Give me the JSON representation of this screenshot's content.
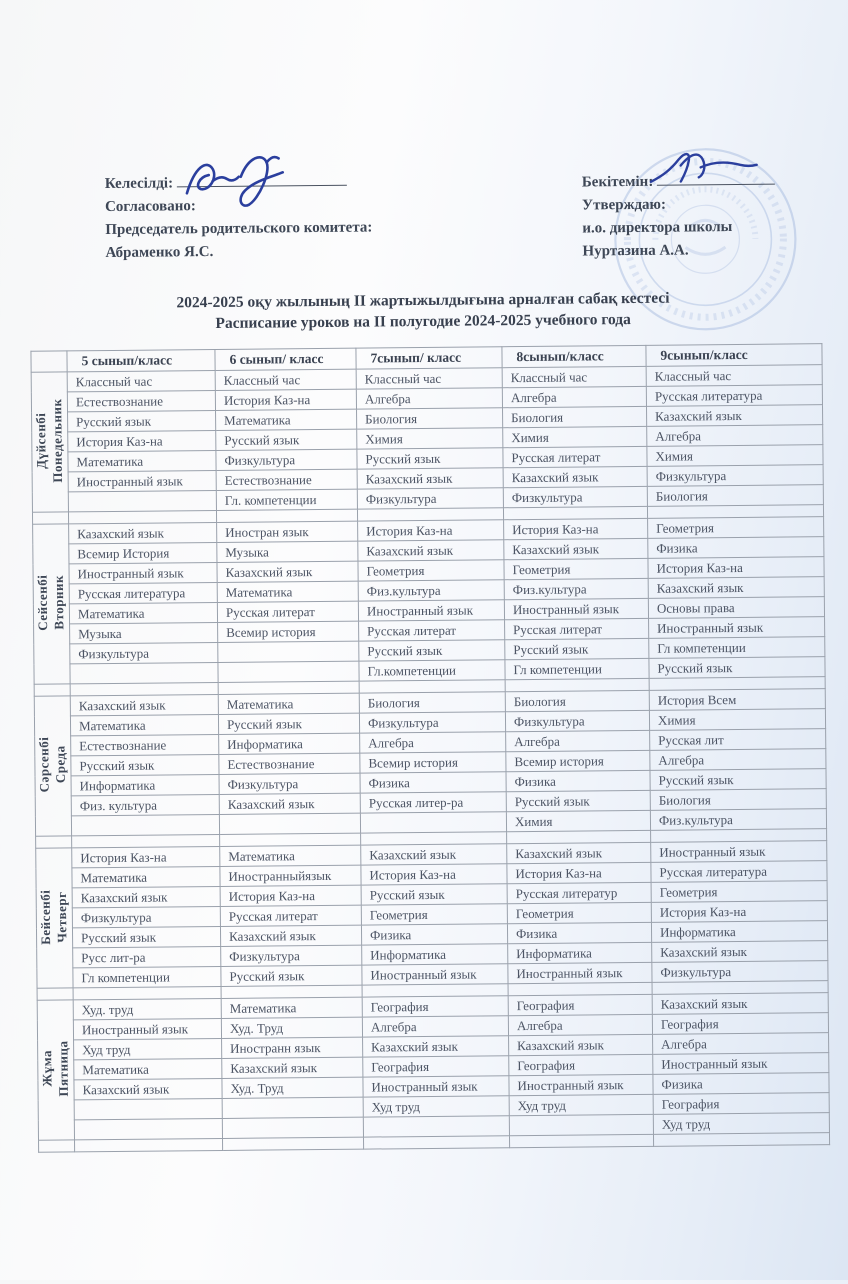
{
  "approval": {
    "left": {
      "agreed_kk": "Келесілді:",
      "agreed_ru": "Согласовано:",
      "role": "Председатель родительского комитета:",
      "name": "Абраменко Я.С."
    },
    "right": {
      "approved_kk": "Бекітемін:",
      "approved_ru": "Утверждаю:",
      "role": "и.о. директора школы",
      "name": "Нуртазина А.А."
    }
  },
  "title": {
    "line1_kk": "2024-2025 оқу жылының ІІ жартыжылдығына арналған сабақ кестесі",
    "line2_ru": "Расписание уроков на ІІ полугодие  2024-2025 учебного года"
  },
  "table": {
    "columns": [
      "",
      "5 сынып/класс",
      "6 сынып/ класс",
      "7сынып/ класс",
      "8сынып/класс",
      "9сынып/класс"
    ],
    "days": [
      {
        "kk": "Дүйсенбі",
        "ru": "Понедельник",
        "rows": [
          [
            "Классный час",
            "Классный час",
            "Классный час",
            "Классный час",
            "Классный час"
          ],
          [
            "Естествознание",
            "История Каз-на",
            "Алгебра",
            "Алгебра",
            "Русская литература"
          ],
          [
            "Русский язык",
            "Математика",
            "Биология",
            "Биология",
            "Казахский язык"
          ],
          [
            "История Каз-на",
            "Русский язык",
            "Химия",
            "Химия",
            "Алгебра"
          ],
          [
            "Математика",
            "Физкультура",
            "Русский язык",
            "Русская литерат",
            "Химия"
          ],
          [
            "Иностранный язык",
            "Естествознание",
            "Казахский язык",
            "Казахский язык",
            "Физкультура"
          ],
          [
            "",
            "Гл. компетенции",
            "Физкультура",
            "Физкультура",
            "Биология"
          ]
        ]
      },
      {
        "kk": "Сейсенбі",
        "ru": "Вторник",
        "rows": [
          [
            "Казахский язык",
            "Иностран  язык",
            "История Каз-на",
            "История Каз-на",
            "Геометрия"
          ],
          [
            "Всемир История",
            "Музыка",
            "Казахский язык",
            "Казахский язык",
            "Физика"
          ],
          [
            "Иностранный  язык",
            "Казахский язык",
            "Геометрия",
            "Геометрия",
            "История Каз-на"
          ],
          [
            "Русская литература",
            "Математика",
            "Физ.культура",
            "Физ.культура",
            "Казахский  язык"
          ],
          [
            "Математика",
            "Русская литерат",
            "Иностранный язык",
            "Иностранный язык",
            "Основы права"
          ],
          [
            "Музыка",
            "Всемир история",
            "Русская литерат",
            "Русская литерат",
            "Иностранный язык"
          ],
          [
            "Физкультура",
            "",
            "Русский язык",
            "Русский язык",
            "Гл компетенции"
          ],
          [
            "",
            "",
            "Гл.компетенции",
            "Гл компетенции",
            "Русский язык"
          ]
        ]
      },
      {
        "kk": "Сәрсенбі",
        "ru": "Среда",
        "rows": [
          [
            "Казахский  язык",
            "Математика",
            "Биология",
            "Биология",
            "История Всем"
          ],
          [
            "Математика",
            "Русский язык",
            "Физкультура",
            "Физкультура",
            "Химия"
          ],
          [
            "Естествознание",
            "Информатика",
            "Алгебра",
            "Алгебра",
            "Русская лит"
          ],
          [
            "Русский язык",
            "Естествознание",
            "Всемир история",
            "Всемир история",
            "Алгебра"
          ],
          [
            "Информатика",
            "Физкультура",
            "Физика",
            "Физика",
            "Русский язык"
          ],
          [
            "Физ. культура",
            "Казахский  язык",
            "Русская литер-ра",
            "Русский язык",
            "Биология"
          ],
          [
            "",
            "",
            "",
            "Химия",
            "Физ.культура"
          ]
        ]
      },
      {
        "kk": "Бейсенбі",
        "ru": "Четверг",
        "rows": [
          [
            "История Каз-на",
            "Математика",
            "Казахский язык",
            "Казахский язык",
            "Иностранный  язык"
          ],
          [
            "Математика",
            "Иностранныйязык",
            "История Каз-на",
            "История Каз-на",
            "Русская литература"
          ],
          [
            "Казахский язык",
            "История Каз-на",
            "Русский язык",
            "Русская литератур",
            "Геометрия"
          ],
          [
            "Физкультура",
            "Русская литерат",
            "Геометрия",
            "Геометрия",
            "История Каз-на"
          ],
          [
            "Русский язык",
            "Казахский язык",
            "Физика",
            "Физика",
            "Информатика"
          ],
          [
            "Русс лит-ра",
            "Физкультура",
            "Информатика",
            "Информатика",
            "Казахский язык"
          ],
          [
            "Гл компетенции",
            "Русский язык",
            "Иностранный язык",
            "Иностранный язык",
            "Физкультура"
          ]
        ]
      },
      {
        "kk": "Жұма",
        "ru": "Пятница",
        "rows": [
          [
            "Худ. труд",
            "Математика",
            "География",
            "География",
            "Казахский  язык"
          ],
          [
            "Иностранный  язык",
            "Худ. Труд",
            "Алгебра",
            "Алгебра",
            "География"
          ],
          [
            "Худ труд",
            "Иностранн язык",
            "Казахский  язык",
            "Казахский  язык",
            "Алгебра"
          ],
          [
            "Математика",
            "Казахский язык",
            "География",
            "География",
            "Иностранный язык"
          ],
          [
            "Казахский язык",
            "Худ. Труд",
            "Иностранный язык",
            "Иностранный язык",
            "Физика"
          ],
          [
            "",
            "",
            "Худ труд",
            "Худ труд",
            "География"
          ],
          [
            "",
            "",
            "",
            "",
            "Худ труд"
          ]
        ]
      }
    ]
  },
  "colors": {
    "ink": "#4d5565",
    "heading_ink": "#38404f",
    "border": "#9aa1ac",
    "signature_blue": "#2b3f9e",
    "stamp_blue": "#8fa8d6",
    "paper_tint": "#dce6f3"
  }
}
